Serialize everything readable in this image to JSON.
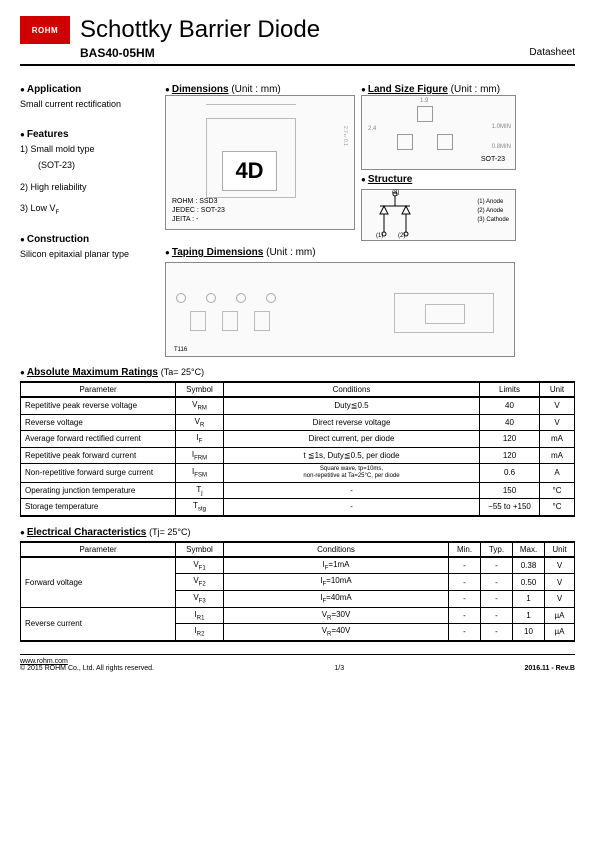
{
  "header": {
    "logo": "ROHM",
    "title": "Schottky Barrier Diode",
    "part": "BAS40-05HM",
    "doctype": "Datasheet"
  },
  "application": {
    "heading": "Application",
    "text": "Small current rectification"
  },
  "features": {
    "heading": "Features",
    "f1a": "1)  Small mold type",
    "f1b": "(SOT-23)",
    "f2": "2)  High reliability",
    "f3": "3)  Low V",
    "f3sub": "F"
  },
  "construction": {
    "heading": "Construction",
    "text": "Silicon epitaxial planar type"
  },
  "dimensions": {
    "heading": "Dimensions",
    "unit": "(Unit : mm)",
    "marking": "4D",
    "note_rohm": "ROHM :  SSD3",
    "note_jedec": "JEDEC : SOT-23",
    "note_jeita": "JEITA : -"
  },
  "landsize": {
    "heading": "Land Size Figure",
    "unit": "(Unit : mm)",
    "sot": "SOT-23",
    "v1": "1.9",
    "v2": "2.4",
    "v3": "1.0MIN",
    "v4": "0.8MIN"
  },
  "structure": {
    "heading": "Structure",
    "p1": "(1) Anode",
    "p2": "(2) Anode",
    "p3": "(3) Cathode",
    "n1": "(1)",
    "n2": "(2)",
    "n3": "(3)"
  },
  "taping": {
    "heading": "Taping Dimensions",
    "unit": "(Unit : mm)",
    "tref": "T116"
  },
  "abs_max": {
    "heading": "Absolute Maximum Ratings",
    "cond_note": "(Ta= 25°C)",
    "columns": {
      "param": "Parameter",
      "symbol": "Symbol",
      "cond": "Conditions",
      "limits": "Limits",
      "unit": "Unit"
    },
    "rows": [
      {
        "param": "Repetitive peak reverse voltage",
        "sym": "V",
        "sub": "RM",
        "cond": "Duty≦0.5",
        "limits": "40",
        "unit": "V"
      },
      {
        "param": "Reverse voltage",
        "sym": "V",
        "sub": "R",
        "cond": "Direct reverse voltage",
        "limits": "40",
        "unit": "V"
      },
      {
        "param": "Average forward rectified current",
        "sym": "I",
        "sub": "F",
        "cond": "Direct current, per diode",
        "limits": "120",
        "unit": "mA"
      },
      {
        "param": "Repetitive peak forward current",
        "sym": "I",
        "sub": "FRM",
        "cond": "t ≦1s, Duty≦0.5, per diode",
        "limits": "120",
        "unit": "mA"
      },
      {
        "param": "Non-repetitive forward surge current",
        "sym": "I",
        "sub": "FSM",
        "cond": "Square wave, tp=10ms,\nnon-repetitive at  Ta=25°C, per diode",
        "limits": "0.6",
        "unit": "A"
      },
      {
        "param": "Operating junction temperature",
        "sym": "T",
        "sub": "j",
        "cond": "-",
        "limits": "150",
        "unit": "°C"
      },
      {
        "param": "Storage temperature",
        "sym": "T",
        "sub": "stg",
        "cond": "-",
        "limits": "−55 to +150",
        "unit": "°C"
      }
    ]
  },
  "elec": {
    "heading": "Electrical Characteristics",
    "cond_note": "(Tj= 25°C)",
    "columns": {
      "param": "Parameter",
      "symbol": "Symbol",
      "cond": "Conditions",
      "min": "Min.",
      "typ": "Typ.",
      "max": "Max.",
      "unit": "Unit"
    },
    "rows": [
      {
        "param": "Forward voltage",
        "span": 3,
        "sub_rows": [
          {
            "sym": "V",
            "sub": "F1",
            "cond": "IF=1mA",
            "min": "-",
            "typ": "-",
            "max": "0.38",
            "unit": "V"
          },
          {
            "sym": "V",
            "sub": "F2",
            "cond": "IF=10mA",
            "min": "-",
            "typ": "-",
            "max": "0.50",
            "unit": "V"
          },
          {
            "sym": "V",
            "sub": "F3",
            "cond": "IF=40mA",
            "min": "-",
            "typ": "-",
            "max": "1",
            "unit": "V"
          }
        ]
      },
      {
        "param": "Reverse current",
        "span": 2,
        "sub_rows": [
          {
            "sym": "I",
            "sub": "R1",
            "cond": "VR=30V",
            "min": "-",
            "typ": "-",
            "max": "1",
            "unit": "µA"
          },
          {
            "sym": "I",
            "sub": "R2",
            "cond": "VR=40V",
            "min": "-",
            "typ": "-",
            "max": "10",
            "unit": "µA"
          }
        ]
      }
    ]
  },
  "footer": {
    "url": "www.rohm.com",
    "copy": "© 2015  ROHM Co., Ltd. All rights reserved.",
    "page": "1/3",
    "rev": "2016.11 -  Rev.B"
  }
}
